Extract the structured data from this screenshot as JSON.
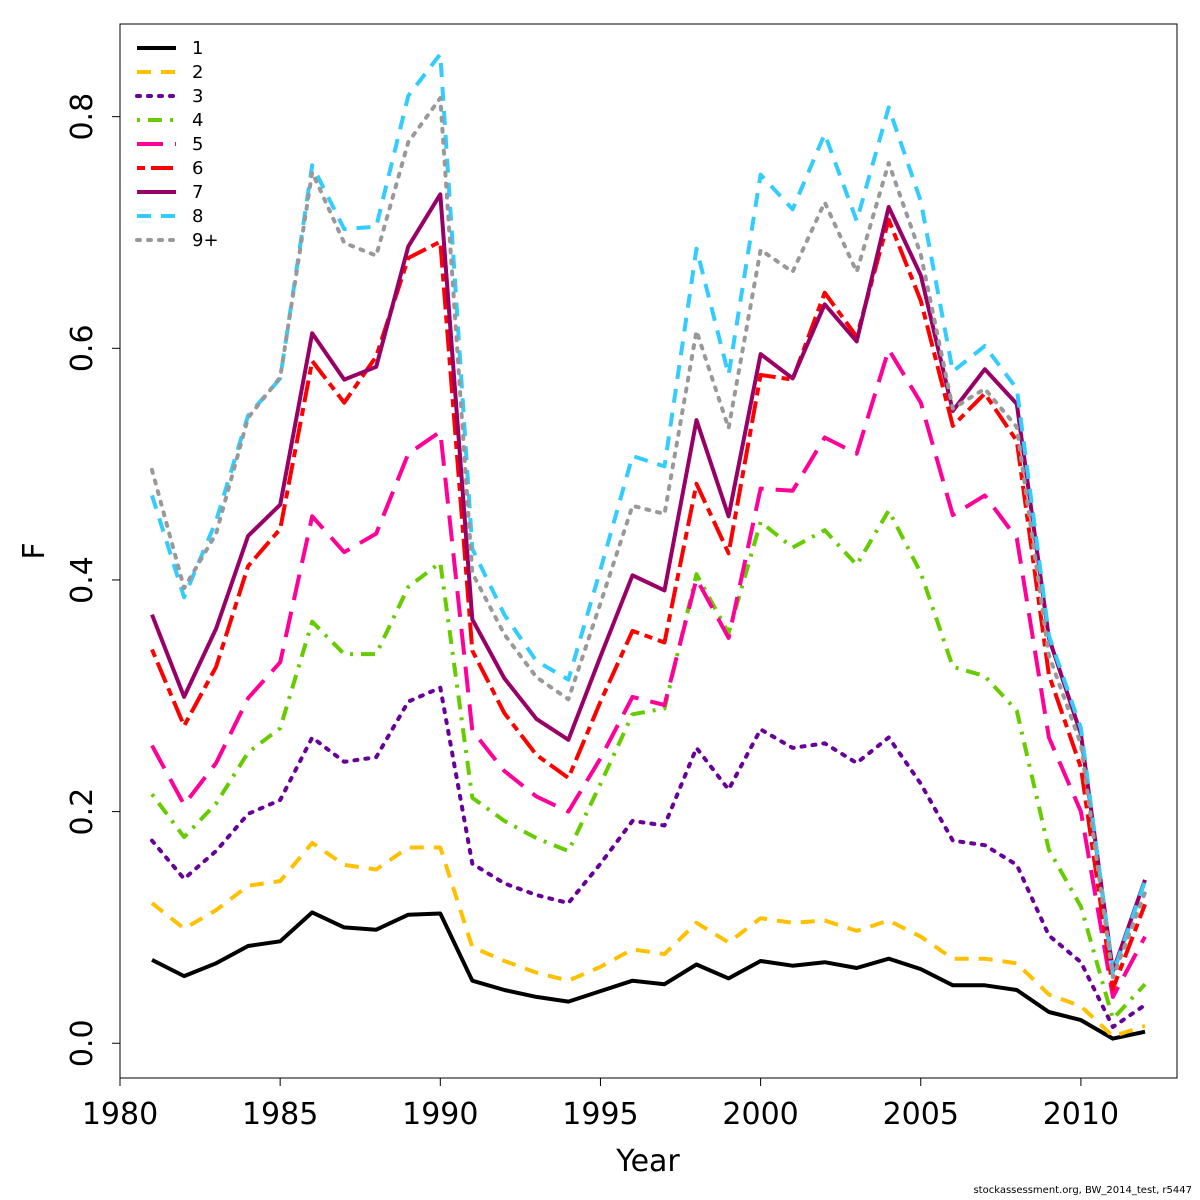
{
  "chart_data": {
    "type": "line",
    "title": "",
    "xlabel": "Year",
    "ylabel": "F",
    "xlim": [
      1980,
      2013
    ],
    "ylim": [
      -0.03,
      0.88
    ],
    "x_ticks": [
      1980,
      1985,
      1990,
      1995,
      2000,
      2005,
      2010
    ],
    "y_ticks": [
      0.0,
      0.2,
      0.4,
      0.6,
      0.8
    ],
    "grid": false,
    "legend_position": "top-left",
    "x": [
      1981,
      1982,
      1983,
      1984,
      1985,
      1986,
      1987,
      1988,
      1989,
      1990,
      1991,
      1992,
      1993,
      1994,
      1995,
      1996,
      1997,
      1998,
      1999,
      2000,
      2001,
      2002,
      2003,
      2004,
      2005,
      2006,
      2007,
      2008,
      2009,
      2010,
      2011,
      2012
    ],
    "series": [
      {
        "name": "1",
        "color": "#000000",
        "dash": "solid",
        "values": [
          0.072,
          0.058,
          0.069,
          0.084,
          0.088,
          0.113,
          0.1,
          0.098,
          0.111,
          0.112,
          0.054,
          0.046,
          0.04,
          0.036,
          0.045,
          0.054,
          0.051,
          0.068,
          0.056,
          0.071,
          0.067,
          0.07,
          0.065,
          0.073,
          0.064,
          0.05,
          0.05,
          0.046,
          0.027,
          0.02,
          0.004,
          0.01
        ]
      },
      {
        "name": "2",
        "color": "#FFC000",
        "dash": "dashed",
        "values": [
          0.121,
          0.099,
          0.115,
          0.136,
          0.14,
          0.173,
          0.154,
          0.15,
          0.169,
          0.169,
          0.083,
          0.071,
          0.061,
          0.054,
          0.066,
          0.081,
          0.077,
          0.104,
          0.087,
          0.108,
          0.104,
          0.106,
          0.097,
          0.106,
          0.092,
          0.073,
          0.073,
          0.069,
          0.042,
          0.032,
          0.006,
          0.015
        ]
      },
      {
        "name": "3",
        "color": "#660099",
        "dash": "dotted",
        "values": [
          0.175,
          0.142,
          0.166,
          0.198,
          0.21,
          0.264,
          0.243,
          0.247,
          0.295,
          0.307,
          0.155,
          0.138,
          0.128,
          0.121,
          0.155,
          0.192,
          0.188,
          0.255,
          0.219,
          0.271,
          0.255,
          0.259,
          0.242,
          0.264,
          0.224,
          0.175,
          0.171,
          0.154,
          0.093,
          0.07,
          0.014,
          0.033
        ]
      },
      {
        "name": "4",
        "color": "#66CC00",
        "dash": "dotdash",
        "values": [
          0.215,
          0.178,
          0.207,
          0.251,
          0.272,
          0.364,
          0.336,
          0.336,
          0.394,
          0.415,
          0.212,
          0.192,
          0.177,
          0.166,
          0.224,
          0.284,
          0.289,
          0.405,
          0.354,
          0.45,
          0.428,
          0.443,
          0.413,
          0.46,
          0.406,
          0.325,
          0.317,
          0.287,
          0.167,
          0.118,
          0.021,
          0.051
        ]
      },
      {
        "name": "5",
        "color": "#FF0099",
        "dash": "longdash",
        "values": [
          0.257,
          0.206,
          0.242,
          0.298,
          0.329,
          0.455,
          0.424,
          0.44,
          0.509,
          0.528,
          0.27,
          0.235,
          0.213,
          0.2,
          0.246,
          0.299,
          0.292,
          0.401,
          0.35,
          0.479,
          0.477,
          0.523,
          0.509,
          0.599,
          0.553,
          0.456,
          0.473,
          0.436,
          0.264,
          0.2,
          0.04,
          0.092
        ]
      },
      {
        "name": "6",
        "color": "#FF0000",
        "dash": "twodash",
        "values": [
          0.34,
          0.274,
          0.325,
          0.412,
          0.444,
          0.589,
          0.553,
          0.593,
          0.678,
          0.692,
          0.339,
          0.285,
          0.249,
          0.229,
          0.295,
          0.356,
          0.346,
          0.483,
          0.423,
          0.577,
          0.573,
          0.648,
          0.61,
          0.711,
          0.641,
          0.533,
          0.561,
          0.52,
          0.318,
          0.238,
          0.047,
          0.12
        ]
      },
      {
        "name": "7",
        "color": "#990066",
        "dash": "solid",
        "values": [
          0.37,
          0.299,
          0.358,
          0.438,
          0.465,
          0.613,
          0.573,
          0.584,
          0.688,
          0.733,
          0.366,
          0.315,
          0.28,
          0.262,
          0.334,
          0.404,
          0.391,
          0.538,
          0.455,
          0.595,
          0.574,
          0.638,
          0.606,
          0.722,
          0.663,
          0.546,
          0.582,
          0.552,
          0.35,
          0.267,
          0.062,
          0.141
        ]
      },
      {
        "name": "8",
        "color": "#33CCFF",
        "dash": "dashed",
        "values": [
          0.473,
          0.385,
          0.451,
          0.542,
          0.574,
          0.758,
          0.703,
          0.705,
          0.818,
          0.854,
          0.427,
          0.37,
          0.33,
          0.314,
          0.409,
          0.507,
          0.498,
          0.686,
          0.577,
          0.75,
          0.72,
          0.785,
          0.71,
          0.808,
          0.727,
          0.58,
          0.602,
          0.565,
          0.352,
          0.272,
          0.06,
          0.14
        ]
      },
      {
        "name": "9+",
        "color": "#999999",
        "dash": "dotted",
        "values": [
          0.495,
          0.393,
          0.44,
          0.54,
          0.575,
          0.752,
          0.691,
          0.68,
          0.778,
          0.816,
          0.406,
          0.353,
          0.316,
          0.297,
          0.38,
          0.464,
          0.457,
          0.615,
          0.531,
          0.685,
          0.666,
          0.726,
          0.666,
          0.76,
          0.681,
          0.548,
          0.565,
          0.532,
          0.335,
          0.258,
          0.057,
          0.13
        ]
      }
    ]
  },
  "footer": {
    "credit": "stockassessment.org, BW_2014_test, r5447"
  }
}
